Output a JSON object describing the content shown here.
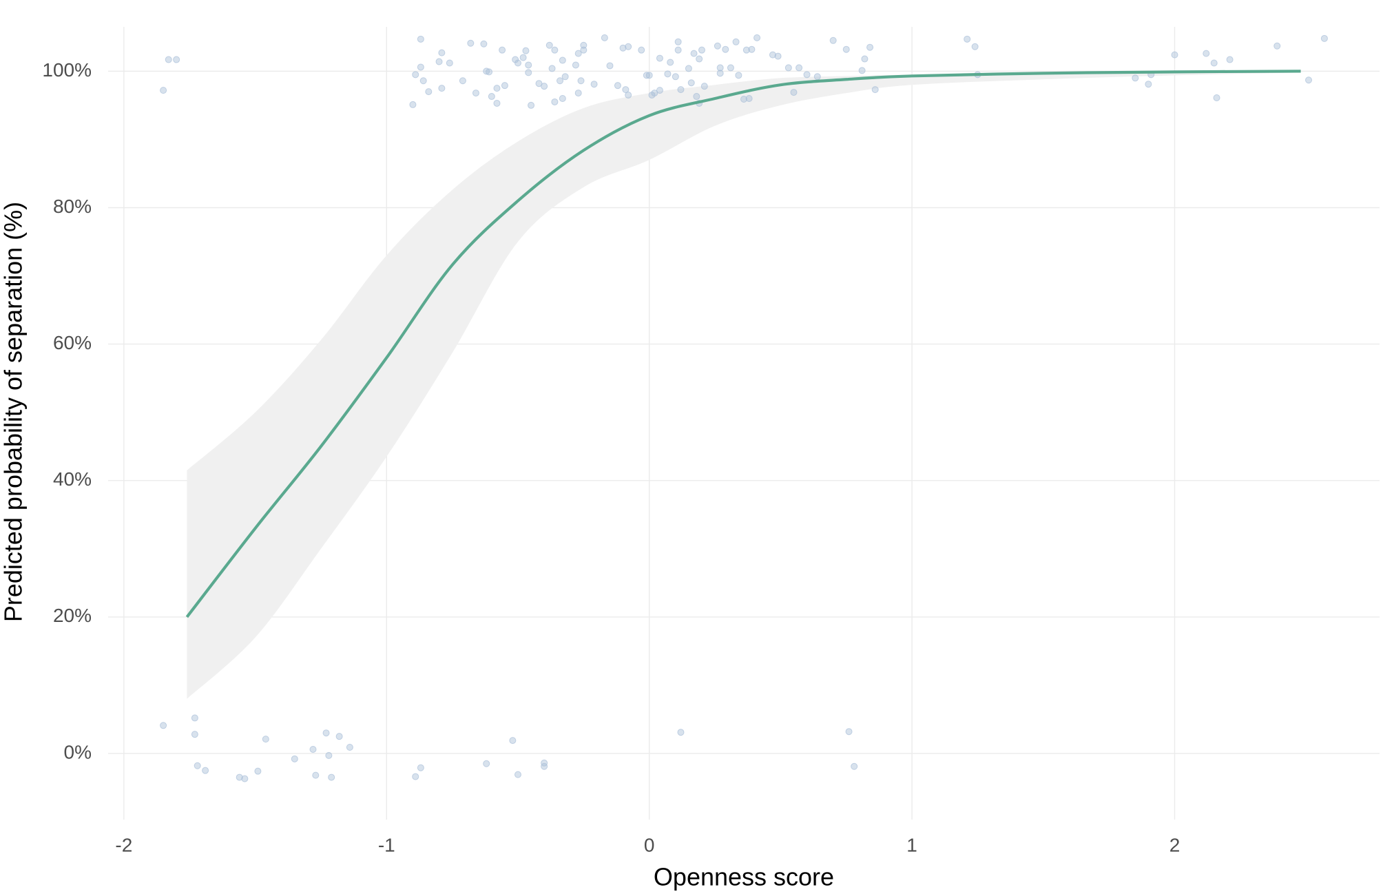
{
  "chart_data": {
    "type": "scatter",
    "x_label": "Openness score",
    "y_label": "Predicted probability of separation (%)",
    "xlim": [
      -2.06,
      2.78
    ],
    "ylim": [
      -9.7,
      106.5
    ],
    "xticks": [
      -2,
      -1,
      0,
      1,
      2
    ],
    "yticks": [
      {
        "value": 0,
        "label": "0%"
      },
      {
        "value": 20,
        "label": "20%"
      },
      {
        "value": 40,
        "label": "40%"
      },
      {
        "value": 60,
        "label": "60%"
      },
      {
        "value": 80,
        "label": "80%"
      },
      {
        "value": 100,
        "label": "100%"
      }
    ],
    "grid": true,
    "points": {
      "color": "#a9bfd8",
      "x": [
        -1.85,
        -1.73,
        -1.73,
        -1.72,
        -1.69,
        -1.56,
        -1.54,
        -1.49,
        -1.46,
        -1.35,
        -1.28,
        -1.27,
        -1.23,
        -1.22,
        -1.21,
        -1.18,
        -1.14,
        -0.89,
        -0.87,
        -0.62,
        -0.52,
        -0.5,
        -0.4,
        -0.4,
        0.12,
        0.76,
        0.78,
        -1.85,
        -1.83,
        -1.8,
        -0.9,
        -0.89,
        -0.87,
        -0.87,
        -0.86,
        -0.84,
        -0.8,
        -0.79,
        -0.79,
        -0.76,
        -0.71,
        -0.68,
        -0.66,
        -0.63,
        -0.62,
        -0.61,
        -0.6,
        -0.58,
        -0.58,
        -0.56,
        -0.55,
        -0.51,
        -0.5,
        -0.48,
        -0.47,
        -0.46,
        -0.46,
        -0.45,
        -0.42,
        -0.4,
        -0.38,
        -0.37,
        -0.36,
        -0.36,
        -0.34,
        -0.33,
        -0.33,
        -0.32,
        -0.28,
        -0.27,
        -0.27,
        -0.26,
        -0.25,
        -0.25,
        -0.21,
        -0.17,
        -0.15,
        -0.12,
        -0.1,
        -0.09,
        -0.08,
        -0.08,
        -0.03,
        -0.01,
        0,
        0.01,
        0.02,
        0.04,
        0.04,
        0.07,
        0.08,
        0.1,
        0.11,
        0.11,
        0.12,
        0.15,
        0.16,
        0.17,
        0.18,
        0.19,
        0.19,
        0.2,
        0.21,
        0.26,
        0.27,
        0.27,
        0.29,
        0.31,
        0.33,
        0.34,
        0.36,
        0.37,
        0.38,
        0.39,
        0.41,
        0.47,
        0.49,
        0.53,
        0.55,
        0.57,
        0.6,
        0.64,
        0.7,
        0.75,
        0.81,
        0.82,
        0.84,
        0.86,
        1.21,
        1.24,
        1.25,
        1.85,
        1.9,
        1.91,
        2,
        2.12,
        2.15,
        2.16,
        2.21,
        2.39,
        2.51,
        2.57
      ],
      "values": [
        4.1,
        5.2,
        2.8,
        -1.8,
        -2.5,
        -3.5,
        -3.7,
        -2.6,
        2.1,
        -0.8,
        0.6,
        -3.2,
        3,
        -0.3,
        -3.5,
        2.5,
        0.9,
        -3.4,
        -2.1,
        -1.5,
        1.9,
        -3.1,
        -1.4,
        -1.9,
        3.1,
        3.2,
        -1.9,
        97.2,
        101.7,
        101.7,
        95.1,
        99.5,
        100.6,
        104.7,
        98.6,
        97,
        101.4,
        102.7,
        97.5,
        101.2,
        98.6,
        104.1,
        96.8,
        104,
        100,
        99.9,
        96.3,
        95.3,
        97.5,
        103.1,
        97.9,
        101.7,
        101.2,
        102,
        103,
        100.9,
        99.8,
        95,
        98.2,
        97.8,
        103.8,
        100.4,
        95.5,
        103.1,
        98.6,
        96,
        101.6,
        99.2,
        100.9,
        96.8,
        102.6,
        98.6,
        103.8,
        103.1,
        98.1,
        104.9,
        100.8,
        97.9,
        103.4,
        97.3,
        103.6,
        96.5,
        103.1,
        99.4,
        99.4,
        96.5,
        96.8,
        97.2,
        101.9,
        99.6,
        101.3,
        99.2,
        104.3,
        103.1,
        97.3,
        100.4,
        98.3,
        102.6,
        96.3,
        95.3,
        101.8,
        103.1,
        97.8,
        103.7,
        100.5,
        99.7,
        103.2,
        100.5,
        104.3,
        99.4,
        95.9,
        103.1,
        96,
        103.2,
        104.9,
        102.4,
        102.2,
        100.5,
        96.9,
        100.5,
        99.5,
        99.2,
        104.5,
        103.2,
        100.1,
        101.8,
        103.5,
        97.3,
        104.7,
        103.6,
        99.5,
        99,
        98.1,
        99.5,
        102.4,
        102.6,
        101.2,
        96.1,
        101.7,
        103.7,
        98.7,
        104.8
      ]
    },
    "fit": {
      "color": "#5aa98f",
      "band_color": "#f0f0f0",
      "x": [
        -1.76,
        -1.5,
        -1.25,
        -1,
        -0.75,
        -0.5,
        -0.25,
        0,
        0.25,
        0.5,
        0.75,
        1,
        1.5,
        2,
        2.48
      ],
      "values": [
        20,
        33,
        45,
        58,
        71.6,
        81,
        88.4,
        93.5,
        96,
        98,
        98.8,
        99.3,
        99.7,
        99.9,
        100
      ],
      "upper": [
        41.5,
        50,
        60.6,
        73,
        82.6,
        89.7,
        94.6,
        96.8,
        98,
        99,
        99.3,
        99.5,
        99.8,
        99.9,
        100
      ],
      "lower": [
        8,
        17,
        30,
        43.5,
        58.7,
        75,
        83,
        87,
        92,
        95,
        96.8,
        98,
        98.8,
        99.4,
        99.8
      ]
    }
  }
}
